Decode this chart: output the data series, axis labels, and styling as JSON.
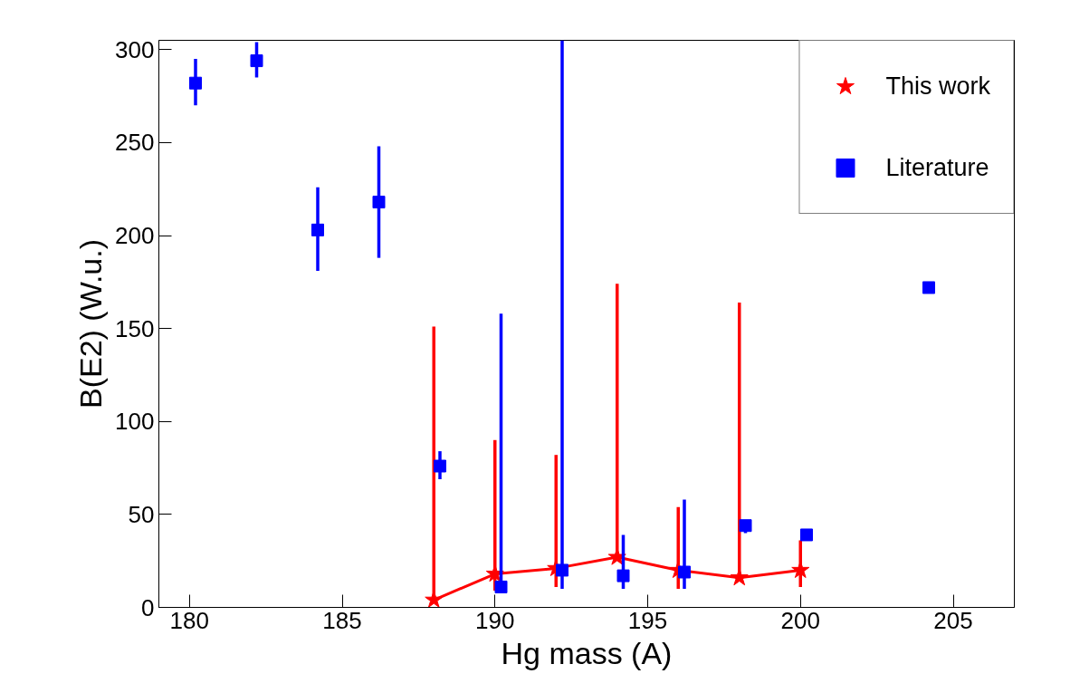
{
  "chart_data": {
    "type": "scatter",
    "xlabel": "Hg mass (A)",
    "ylabel": "B(E2) (W.u.)",
    "xlim": [
      179,
      207
    ],
    "ylim": [
      0,
      305
    ],
    "xticks": [
      180,
      185,
      190,
      195,
      200,
      205
    ],
    "yticks": [
      0,
      50,
      100,
      150,
      200,
      250,
      300
    ],
    "grid": false,
    "legend": "top right",
    "series": [
      {
        "name": "This work",
        "type": "line",
        "marker": "star",
        "color": "#ff0000",
        "x": [
          188,
          190,
          192,
          194,
          196,
          198,
          200
        ],
        "values": [
          4,
          18,
          21,
          27,
          20,
          16,
          20
        ],
        "errors": [
          [
            4,
            151
          ],
          [
            9,
            90
          ],
          [
            11,
            82
          ],
          [
            27,
            174
          ],
          [
            10,
            54
          ],
          [
            16,
            164
          ],
          [
            11,
            36
          ]
        ]
      },
      {
        "name": "Literature",
        "marker": "square",
        "color": "#0000ff",
        "x": [
          180.2,
          182.2,
          184.2,
          186.2,
          188.2,
          190.2,
          192.2,
          194.2,
          196.2,
          198.2,
          200.2,
          204.2
        ],
        "values": [
          282,
          294,
          203,
          218,
          76,
          11,
          20,
          17,
          19,
          44,
          39,
          172
        ],
        "errors": [
          [
            270,
            295
          ],
          [
            285,
            304
          ],
          [
            181,
            226
          ],
          [
            188,
            248
          ],
          [
            69,
            84
          ],
          [
            11,
            158
          ],
          [
            10,
            305
          ],
          [
            10,
            39
          ],
          [
            10,
            58
          ],
          [
            40,
            47
          ],
          null,
          null
        ]
      }
    ]
  }
}
